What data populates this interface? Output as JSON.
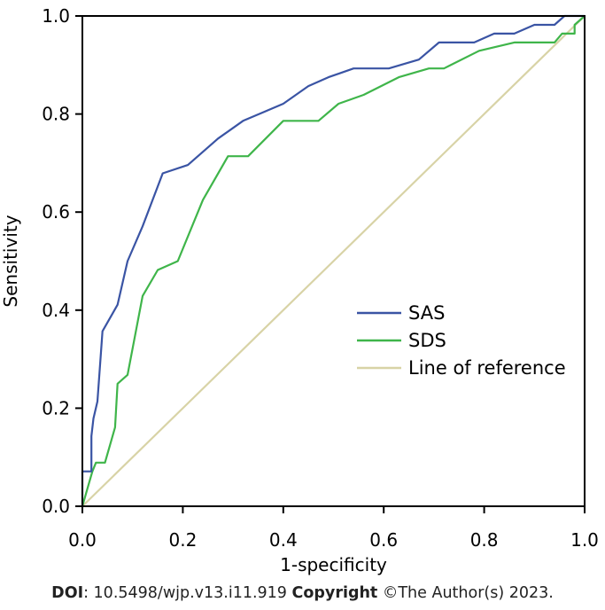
{
  "chart_data": {
    "type": "line",
    "xlabel": "1-specificity",
    "ylabel": "Sensitivity",
    "xlim": [
      0,
      1
    ],
    "ylim": [
      0,
      1
    ],
    "x_ticks": [
      "0.0",
      "0.2",
      "0.4",
      "0.6",
      "0.8",
      "1.0"
    ],
    "y_ticks": [
      "0.0",
      "0.2",
      "0.4",
      "0.6",
      "0.8",
      "1.0"
    ],
    "grid": false,
    "legend_position": "lower-right",
    "series": [
      {
        "name": "SAS",
        "color": "#3a54a4",
        "points": [
          [
            0,
            0
          ],
          [
            0,
            0.071
          ],
          [
            0.018,
            0.071
          ],
          [
            0.018,
            0.143
          ],
          [
            0.022,
            0.179
          ],
          [
            0.03,
            0.214
          ],
          [
            0.04,
            0.357
          ],
          [
            0.07,
            0.411
          ],
          [
            0.09,
            0.5
          ],
          [
            0.12,
            0.571
          ],
          [
            0.16,
            0.679
          ],
          [
            0.21,
            0.696
          ],
          [
            0.27,
            0.75
          ],
          [
            0.32,
            0.786
          ],
          [
            0.4,
            0.821
          ],
          [
            0.45,
            0.857
          ],
          [
            0.49,
            0.875
          ],
          [
            0.54,
            0.893
          ],
          [
            0.61,
            0.893
          ],
          [
            0.67,
            0.911
          ],
          [
            0.71,
            0.946
          ],
          [
            0.78,
            0.946
          ],
          [
            0.82,
            0.964
          ],
          [
            0.86,
            0.964
          ],
          [
            0.9,
            0.982
          ],
          [
            0.94,
            0.982
          ],
          [
            0.96,
            1.0
          ],
          [
            1.0,
            1.0
          ]
        ]
      },
      {
        "name": "SDS",
        "color": "#3fb54a",
        "points": [
          [
            0,
            0
          ],
          [
            0.01,
            0.036
          ],
          [
            0.02,
            0.071
          ],
          [
            0.027,
            0.089
          ],
          [
            0.045,
            0.089
          ],
          [
            0.055,
            0.125
          ],
          [
            0.065,
            0.161
          ],
          [
            0.07,
            0.25
          ],
          [
            0.09,
            0.268
          ],
          [
            0.12,
            0.429
          ],
          [
            0.15,
            0.482
          ],
          [
            0.19,
            0.5
          ],
          [
            0.24,
            0.625
          ],
          [
            0.29,
            0.714
          ],
          [
            0.33,
            0.714
          ],
          [
            0.4,
            0.786
          ],
          [
            0.47,
            0.786
          ],
          [
            0.51,
            0.821
          ],
          [
            0.56,
            0.839
          ],
          [
            0.63,
            0.875
          ],
          [
            0.69,
            0.893
          ],
          [
            0.72,
            0.893
          ],
          [
            0.79,
            0.929
          ],
          [
            0.86,
            0.946
          ],
          [
            0.94,
            0.946
          ],
          [
            0.955,
            0.964
          ],
          [
            0.98,
            0.964
          ],
          [
            0.98,
            0.982
          ],
          [
            1.0,
            1.0
          ]
        ]
      },
      {
        "name": "Line of reference",
        "color": "#d8d3a6",
        "points": [
          [
            0,
            0
          ],
          [
            1,
            1
          ]
        ]
      }
    ]
  },
  "footer": {
    "doi_label": "DOI",
    "doi_value": ": 10.5498/wjp.v13.i11.919 ",
    "copyright_label": "Copyright",
    "copyright_value": " ©The Author(s) 2023."
  }
}
